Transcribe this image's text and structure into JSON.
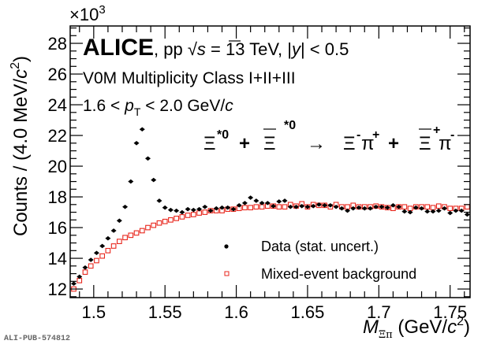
{
  "chart_data": {
    "type": "scatter",
    "title": "",
    "xlabel": "M_Ξπ (GeV/c²)",
    "xlabel_parts": {
      "symbol": "M",
      "subscript": "Ξπ",
      "unit_open": " (GeV/",
      "unit_var": "c",
      "unit_sup": "2",
      "unit_close": ")"
    },
    "ylabel": "Counts / (4.0 MeV/c²)",
    "ylabel_parts": {
      "main": "Counts / (4.0 MeV/",
      "var": "c",
      "sup": "2",
      "close": ")"
    },
    "y_multiplier": "×10",
    "y_multiplier_exp": "3",
    "xlim": [
      1.4835,
      1.764
    ],
    "ylim": [
      11.44,
      29.13
    ],
    "x_ticks": [
      1.5,
      1.55,
      1.6,
      1.65,
      1.7,
      1.75
    ],
    "x_tick_labels": [
      "1.5",
      "1.55",
      "1.6",
      "1.65",
      "1.7",
      "1.75"
    ],
    "y_ticks": [
      12,
      14,
      16,
      18,
      20,
      22,
      24,
      26,
      28
    ],
    "y_tick_labels": [
      "12",
      "14",
      "16",
      "18",
      "20",
      "22",
      "24",
      "26",
      "28"
    ],
    "grid": false,
    "legend_position": "bottom-right",
    "bin_start": 1.486,
    "bin_width": 0.004,
    "series": [
      {
        "name": "Data (stat. uncert.)",
        "marker": "filled-circle",
        "color": "#000000",
        "values": [
          12.35,
          12.8,
          13.4,
          13.9,
          14.35,
          14.8,
          15.3,
          15.8,
          16.45,
          17.35,
          19.0,
          21.5,
          22.4,
          20.5,
          19.1,
          17.75,
          17.3,
          17.15,
          17.1,
          17.0,
          17.2,
          17.15,
          17.2,
          17.35,
          17.1,
          17.25,
          17.3,
          17.3,
          17.2,
          17.45,
          17.6,
          17.95,
          17.75,
          17.6,
          17.6,
          17.4,
          17.7,
          17.75,
          17.35,
          17.35,
          17.4,
          17.35,
          17.4,
          17.5,
          17.45,
          17.45,
          17.35,
          17.25,
          17.1,
          17.25,
          17.3,
          17.25,
          17.25,
          17.35,
          17.35,
          17.3,
          17.45,
          17.35,
          17.05,
          17.0,
          17.3,
          17.25,
          17.05,
          17.05,
          17.1,
          17.25,
          16.95,
          17.1,
          17.1,
          16.85
        ]
      },
      {
        "name": "Mixed-event background",
        "marker": "open-square",
        "color": "#e8261c",
        "values": [
          12.0,
          12.55,
          13.1,
          13.5,
          13.85,
          14.15,
          14.5,
          14.8,
          15.1,
          15.35,
          15.5,
          15.65,
          15.8,
          16.0,
          16.15,
          16.3,
          16.4,
          16.5,
          16.6,
          16.7,
          16.8,
          16.85,
          16.95,
          17.0,
          17.1,
          17.1,
          17.1,
          17.2,
          17.2,
          17.25,
          17.3,
          17.3,
          17.35,
          17.35,
          17.4,
          17.4,
          17.35,
          17.35,
          17.5,
          17.4,
          17.55,
          17.35,
          17.5,
          17.45,
          17.45,
          17.35,
          17.5,
          17.35,
          17.35,
          17.45,
          17.35,
          17.35,
          17.35,
          17.4,
          17.35,
          17.3,
          17.25,
          17.35,
          17.35,
          17.25,
          17.35,
          17.35,
          17.35,
          17.3,
          17.4,
          17.35,
          17.25,
          17.25,
          17.25,
          17.35
        ]
      }
    ],
    "annotations": {
      "experiment": "ALICE",
      "collision": ", pp ",
      "sqrt": "√",
      "s_var": "s",
      "energy": " = 13 TeV, |",
      "y_var": "y",
      "rapidity": "| < 0.5",
      "multiplicity": "V0M Multiplicity Class I+II+III",
      "pt_low": "1.6 < ",
      "pt_var": "p",
      "pt_sub": "T",
      "pt_high": " < 2.0 GeV/",
      "pt_unit_var": "c",
      "reaction": {
        "xi": "Ξ",
        "star0": "*0",
        "plus": "+",
        "arrow": "→",
        "minus_sup": "-",
        "plus_sup": "+",
        "pi": "π"
      }
    }
  },
  "watermark": "ALI-PUB-574812"
}
